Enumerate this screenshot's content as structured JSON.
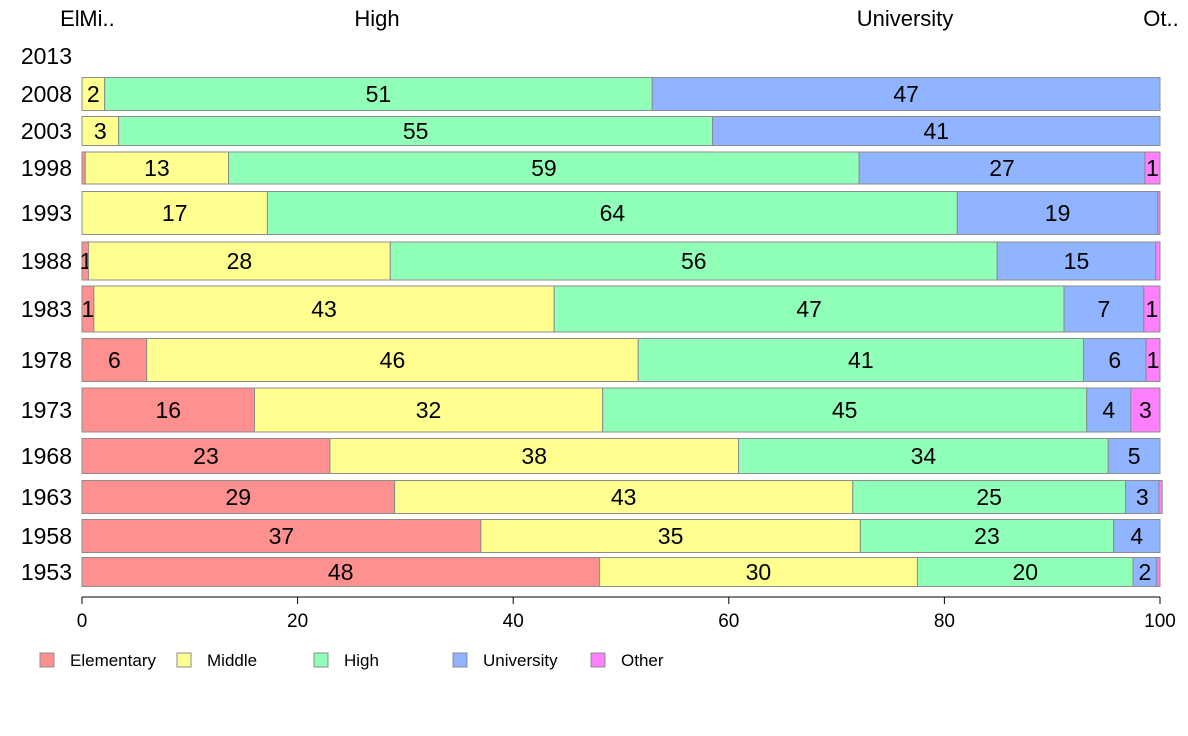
{
  "chart_data": {
    "type": "bar",
    "orientation": "horizontal",
    "stacked": true,
    "categories": [
      "2013",
      "2008",
      "2003",
      "1998",
      "1993",
      "1988",
      "1983",
      "1978",
      "1973",
      "1968",
      "1963",
      "1958",
      "1953"
    ],
    "series": [
      {
        "name": "Elementary",
        "color": "#ff9090",
        "values": [
          null,
          0,
          0,
          0.3,
          0,
          0.6,
          1.1,
          6,
          16,
          23,
          29,
          37,
          48
        ],
        "labels": [
          "",
          "",
          "",
          "",
          "",
          "1",
          "1",
          "6",
          "16",
          "23",
          "29",
          "37",
          "48"
        ]
      },
      {
        "name": "Middle",
        "color": "#ffff90",
        "values": [
          null,
          2.1,
          3.4,
          13.3,
          17.2,
          28,
          42.7,
          45.6,
          32.3,
          37.9,
          42.5,
          35.2,
          29.5
        ],
        "labels": [
          "",
          "2",
          "3",
          "13",
          "17",
          "28",
          "43",
          "46",
          "32",
          "38",
          "43",
          "35",
          "30"
        ]
      },
      {
        "name": "High",
        "color": "#90ffb8",
        "values": [
          null,
          50.8,
          55.1,
          58.5,
          64,
          56.3,
          47.3,
          41.3,
          44.9,
          34.3,
          25.3,
          23.5,
          20
        ],
        "labels": [
          "",
          "51",
          "55",
          "59",
          "64",
          "56",
          "47",
          "41",
          "45",
          "34",
          "25",
          "23",
          "20"
        ]
      },
      {
        "name": "University",
        "color": "#90b4ff",
        "values": [
          null,
          47.1,
          41.5,
          26.5,
          18.6,
          14.7,
          7.4,
          5.8,
          4.1,
          4.8,
          3.1,
          4.3,
          2.2
        ],
        "labels": [
          "",
          "47",
          "41",
          "27",
          "19",
          "15",
          "7",
          "6",
          "4",
          "5",
          "3",
          "4",
          "2"
        ]
      },
      {
        "name": "Other",
        "color": "#ff80ff",
        "values": [
          null,
          0,
          0,
          1.4,
          0.2,
          0.4,
          1.5,
          1.3,
          2.7,
          0,
          0.3,
          0,
          0.3
        ],
        "labels": [
          "",
          "",
          "",
          "1",
          "",
          "",
          "1",
          "1",
          "3",
          "",
          "",
          "",
          ""
        ]
      }
    ],
    "top_labels": [
      "El..",
      "Mi..",
      "High",
      "University",
      "Ot.."
    ],
    "x_ticks": [
      "0",
      "20",
      "40",
      "60",
      "80",
      "100"
    ],
    "xlim": [
      0,
      100
    ],
    "grid": false,
    "legend_position": "bottom-left"
  }
}
